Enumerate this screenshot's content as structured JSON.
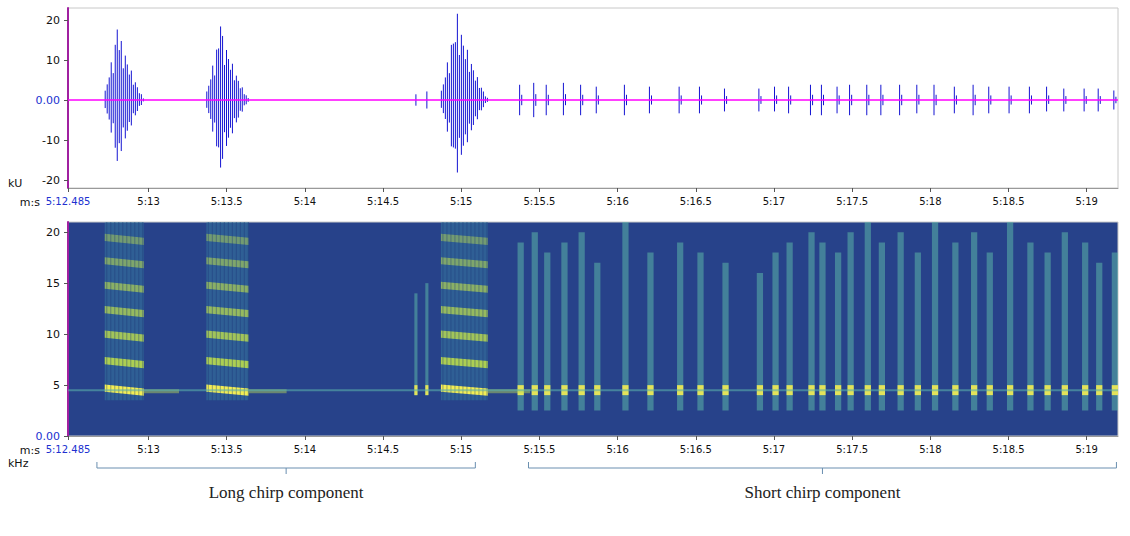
{
  "chart_data": [
    {
      "type": "waveform",
      "x_label": "m:s",
      "y_label": "kU",
      "xlim": [
        312.485,
        319.2
      ],
      "xticks": [
        {
          "value": 312.485,
          "label": "5:12.485"
        },
        {
          "value": 313,
          "label": "5:13"
        },
        {
          "value": 313.5,
          "label": "5:13.5"
        },
        {
          "value": 314,
          "label": "5:14"
        },
        {
          "value": 314.5,
          "label": "5:14.5"
        },
        {
          "value": 315,
          "label": "5:15"
        },
        {
          "value": 315.5,
          "label": "5:15.5"
        },
        {
          "value": 316,
          "label": "5:16"
        },
        {
          "value": 316.5,
          "label": "5:16.5"
        },
        {
          "value": 317,
          "label": "5:17"
        },
        {
          "value": 317.5,
          "label": "5:17.5"
        },
        {
          "value": 318,
          "label": "5:18"
        },
        {
          "value": 318.5,
          "label": "5:18.5"
        },
        {
          "value": 319,
          "label": "5:19"
        }
      ],
      "ylim": [
        -22,
        23
      ],
      "yticks": [
        -20,
        -10,
        {
          "value": 0,
          "label": "0.00"
        },
        10,
        20
      ],
      "grid": false,
      "color": "#1414d2",
      "bursts": [
        {
          "start": 312.71,
          "end": 312.98,
          "max": 18.5,
          "min": -16
        },
        {
          "start": 313.36,
          "end": 313.65,
          "max": 18.5,
          "min": -17
        },
        {
          "start": 314.7,
          "end": 314.72,
          "max": 2,
          "min": -2
        },
        {
          "start": 314.77,
          "end": 314.79,
          "max": 3,
          "min": -3
        },
        {
          "start": 314.86,
          "end": 315.18,
          "max": 22,
          "min": -18.5
        },
        {
          "start": 315.36,
          "end": 315.4,
          "max": 4,
          "min": -4
        },
        {
          "start": 315.45,
          "end": 315.49,
          "max": 4.5,
          "min": -4.5
        },
        {
          "start": 315.53,
          "end": 315.57,
          "max": 4,
          "min": -4
        },
        {
          "start": 315.64,
          "end": 315.68,
          "max": 4.5,
          "min": -4
        },
        {
          "start": 315.75,
          "end": 315.79,
          "max": 4,
          "min": -4
        },
        {
          "start": 315.85,
          "end": 315.89,
          "max": 3.5,
          "min": -3.5
        },
        {
          "start": 316.03,
          "end": 316.07,
          "max": 4,
          "min": -4
        },
        {
          "start": 316.19,
          "end": 316.23,
          "max": 3.5,
          "min": -3.5
        },
        {
          "start": 316.38,
          "end": 316.42,
          "max": 3.5,
          "min": -3.5
        },
        {
          "start": 316.51,
          "end": 316.55,
          "max": 3.5,
          "min": -3.5
        },
        {
          "start": 316.67,
          "end": 316.71,
          "max": 3,
          "min": -3
        },
        {
          "start": 316.89,
          "end": 316.93,
          "max": 3,
          "min": -3
        },
        {
          "start": 316.99,
          "end": 317.03,
          "max": 3.5,
          "min": -3
        },
        {
          "start": 317.08,
          "end": 317.12,
          "max": 3.5,
          "min": -3.5
        },
        {
          "start": 317.22,
          "end": 317.26,
          "max": 4,
          "min": -4
        },
        {
          "start": 317.29,
          "end": 317.33,
          "max": 4,
          "min": -4
        },
        {
          "start": 317.39,
          "end": 317.43,
          "max": 3.5,
          "min": -3.5
        },
        {
          "start": 317.47,
          "end": 317.51,
          "max": 4,
          "min": -4
        },
        {
          "start": 317.58,
          "end": 317.62,
          "max": 4,
          "min": -4
        },
        {
          "start": 317.67,
          "end": 317.71,
          "max": 4,
          "min": -4
        },
        {
          "start": 317.79,
          "end": 317.83,
          "max": 4,
          "min": -4
        },
        {
          "start": 317.9,
          "end": 317.94,
          "max": 4,
          "min": -3.5
        },
        {
          "start": 318.01,
          "end": 318.05,
          "max": 4,
          "min": -4
        },
        {
          "start": 318.14,
          "end": 318.18,
          "max": 3.5,
          "min": -3.5
        },
        {
          "start": 318.26,
          "end": 318.3,
          "max": 4,
          "min": -4
        },
        {
          "start": 318.36,
          "end": 318.4,
          "max": 3.5,
          "min": -3.5
        },
        {
          "start": 318.49,
          "end": 318.53,
          "max": 3.5,
          "min": -3.5
        },
        {
          "start": 318.62,
          "end": 318.66,
          "max": 3.5,
          "min": -3.5
        },
        {
          "start": 318.73,
          "end": 318.77,
          "max": 3.5,
          "min": -3
        },
        {
          "start": 318.84,
          "end": 318.88,
          "max": 3,
          "min": -3
        },
        {
          "start": 318.97,
          "end": 319.01,
          "max": 3,
          "min": -3
        },
        {
          "start": 319.06,
          "end": 319.1,
          "max": 3,
          "min": -3
        },
        {
          "start": 319.16,
          "end": 319.2,
          "max": 2.5,
          "min": -2.5
        }
      ]
    },
    {
      "type": "spectrogram",
      "x_label": "m:s",
      "y_label": "kHz",
      "xlim": [
        312.485,
        319.2
      ],
      "xticks": [
        {
          "value": 312.485,
          "label": "5:12.485"
        },
        {
          "value": 313,
          "label": "5:13"
        },
        {
          "value": 313.5,
          "label": "5:13.5"
        },
        {
          "value": 314,
          "label": "5:14"
        },
        {
          "value": 314.5,
          "label": "5:14.5"
        },
        {
          "value": 315,
          "label": "5:15"
        },
        {
          "value": 315.5,
          "label": "5:15.5"
        },
        {
          "value": 316,
          "label": "5:16"
        },
        {
          "value": 316.5,
          "label": "5:16.5"
        },
        {
          "value": 317,
          "label": "5:17"
        },
        {
          "value": 317.5,
          "label": "5:17.5"
        },
        {
          "value": 318,
          "label": "5:18"
        },
        {
          "value": 318.5,
          "label": "5:18.5"
        },
        {
          "value": 319,
          "label": "5:19"
        }
      ],
      "ylim": [
        0,
        21
      ],
      "yticks": [
        {
          "value": 0,
          "label": "0.00"
        },
        5,
        10,
        15,
        20
      ],
      "grid": false,
      "tone_khz": 4.5,
      "harmonics": [
        4.5,
        7.2,
        9.8,
        12.2,
        14.6,
        17.0,
        19.3
      ],
      "peak_khz": 4.5,
      "long_calls": [
        {
          "start": 312.72,
          "end": 312.97,
          "fmin": 3.5,
          "fmax": 21
        },
        {
          "start": 313.37,
          "end": 313.64,
          "fmin": 3.5,
          "fmax": 21
        },
        {
          "start": 314.87,
          "end": 315.17,
          "fmin": 3.5,
          "fmax": 21
        }
      ],
      "short_calls": [
        {
          "start": 314.7,
          "end": 314.72,
          "fmin": 4,
          "fmax": 14
        },
        {
          "start": 314.77,
          "end": 314.79,
          "fmin": 4,
          "fmax": 15
        },
        {
          "start": 315.36,
          "end": 315.4,
          "fmin": 2.5,
          "fmax": 19
        },
        {
          "start": 315.45,
          "end": 315.49,
          "fmin": 2.5,
          "fmax": 20
        },
        {
          "start": 315.53,
          "end": 315.57,
          "fmin": 2.5,
          "fmax": 18
        },
        {
          "start": 315.64,
          "end": 315.68,
          "fmin": 2.5,
          "fmax": 19
        },
        {
          "start": 315.75,
          "end": 315.79,
          "fmin": 2.5,
          "fmax": 20
        },
        {
          "start": 315.85,
          "end": 315.89,
          "fmin": 2.5,
          "fmax": 17
        },
        {
          "start": 316.03,
          "end": 316.07,
          "fmin": 2.5,
          "fmax": 21
        },
        {
          "start": 316.19,
          "end": 316.23,
          "fmin": 2.5,
          "fmax": 18
        },
        {
          "start": 316.38,
          "end": 316.42,
          "fmin": 2.5,
          "fmax": 19
        },
        {
          "start": 316.51,
          "end": 316.55,
          "fmin": 2.5,
          "fmax": 18
        },
        {
          "start": 316.67,
          "end": 316.71,
          "fmin": 2.5,
          "fmax": 17
        },
        {
          "start": 316.89,
          "end": 316.93,
          "fmin": 2.5,
          "fmax": 16
        },
        {
          "start": 316.99,
          "end": 317.03,
          "fmin": 2.5,
          "fmax": 18
        },
        {
          "start": 317.08,
          "end": 317.12,
          "fmin": 2.5,
          "fmax": 19
        },
        {
          "start": 317.22,
          "end": 317.26,
          "fmin": 2.5,
          "fmax": 20
        },
        {
          "start": 317.29,
          "end": 317.33,
          "fmin": 2.5,
          "fmax": 19
        },
        {
          "start": 317.39,
          "end": 317.43,
          "fmin": 2.5,
          "fmax": 18
        },
        {
          "start": 317.47,
          "end": 317.51,
          "fmin": 2.5,
          "fmax": 20
        },
        {
          "start": 317.58,
          "end": 317.62,
          "fmin": 2.5,
          "fmax": 21
        },
        {
          "start": 317.67,
          "end": 317.71,
          "fmin": 2.5,
          "fmax": 19
        },
        {
          "start": 317.79,
          "end": 317.83,
          "fmin": 2.5,
          "fmax": 20
        },
        {
          "start": 317.9,
          "end": 317.94,
          "fmin": 2.5,
          "fmax": 18
        },
        {
          "start": 318.01,
          "end": 318.05,
          "fmin": 2.5,
          "fmax": 21
        },
        {
          "start": 318.14,
          "end": 318.18,
          "fmin": 2.5,
          "fmax": 19
        },
        {
          "start": 318.26,
          "end": 318.3,
          "fmin": 2.5,
          "fmax": 20
        },
        {
          "start": 318.36,
          "end": 318.4,
          "fmin": 2.5,
          "fmax": 18
        },
        {
          "start": 318.49,
          "end": 318.53,
          "fmin": 2.5,
          "fmax": 21
        },
        {
          "start": 318.62,
          "end": 318.66,
          "fmin": 2.5,
          "fmax": 19
        },
        {
          "start": 318.73,
          "end": 318.77,
          "fmin": 2.5,
          "fmax": 18
        },
        {
          "start": 318.84,
          "end": 318.88,
          "fmin": 2.5,
          "fmax": 20
        },
        {
          "start": 318.97,
          "end": 319.01,
          "fmin": 2.5,
          "fmax": 19
        },
        {
          "start": 319.06,
          "end": 319.1,
          "fmin": 2.5,
          "fmax": 17
        },
        {
          "start": 319.16,
          "end": 319.2,
          "fmin": 2.5,
          "fmax": 18
        }
      ],
      "brackets": [
        {
          "text": "Long chirp component",
          "start": 312.67,
          "end": 315.09
        },
        {
          "text": "Short chirp component",
          "start": 315.43,
          "end": 319.19
        }
      ]
    }
  ]
}
